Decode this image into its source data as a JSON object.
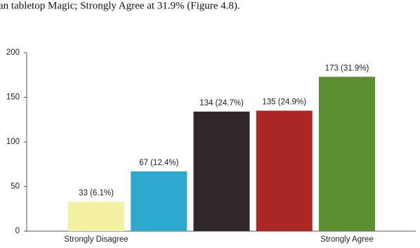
{
  "document_text": "an tabletop Magic; Strongly Agree at 31.9% (Figure 4.8).",
  "chart_data": {
    "type": "bar",
    "categories": [
      "Strongly Disagree",
      null,
      null,
      null,
      "Strongly Agree"
    ],
    "values": [
      33,
      67,
      134,
      135,
      173
    ],
    "value_labels": [
      "33 (6.1%)",
      "67 (12.4%)",
      "134 (24.7%)",
      "135 (24.9%)",
      "173 (31.9%)"
    ],
    "colors": [
      "#f4f1a3",
      "#2ea8cf",
      "#302729",
      "#aa2726",
      "#5b8f2f"
    ],
    "ylim": [
      0,
      200
    ],
    "yticks": [
      0,
      50,
      100,
      150,
      200
    ],
    "grid": false
  }
}
